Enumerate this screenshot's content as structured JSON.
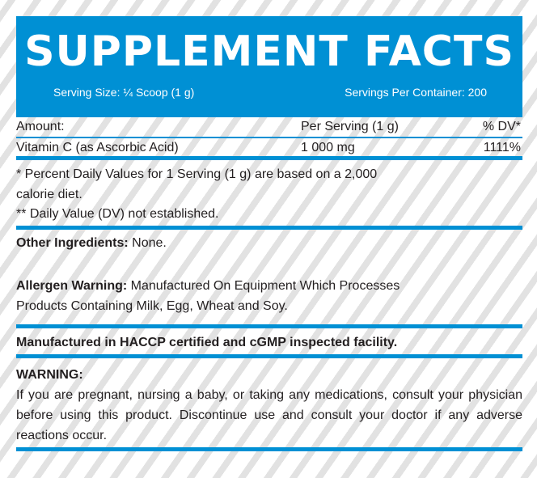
{
  "header": {
    "title": "SUPPLEMENT FACTS",
    "serving_size": "Serving Size: ¼ Scoop (1 g)",
    "servings_per_container": "Servings Per Container: 200"
  },
  "table": {
    "headers": {
      "amount": "Amount:",
      "per_serving": "Per Serving (1 g)",
      "dv": "% DV*"
    },
    "rows": [
      {
        "name": "Vitamin C (as Ascorbic Acid)",
        "amount": "1 000 mg",
        "dv": "1111%"
      }
    ]
  },
  "footnotes": {
    "line1": "* Percent Daily Values for 1 Serving (1 g) are based on a 2,000",
    "line2": "calorie diet.",
    "line3": "** Daily Value (DV) not established."
  },
  "other_ingredients": {
    "label": "Other Ingredients:",
    "value": " None."
  },
  "allergen": {
    "label": "Allergen Warning:",
    "line1": " Manufactured On Equipment Which Processes",
    "line2": "Products Containing Milk, Egg, Wheat and Soy."
  },
  "facility": "Manufactured in HACCP certified and cGMP inspected facility.",
  "warning": {
    "label": "WARNING:",
    "text": "If you are pregnant, nursing a baby, or taking any medications, consult your physician before using this product. Discontinue use and consult your doctor if any adverse reactions occur."
  },
  "colors": {
    "accent": "#0090d4",
    "text": "#231f20"
  }
}
